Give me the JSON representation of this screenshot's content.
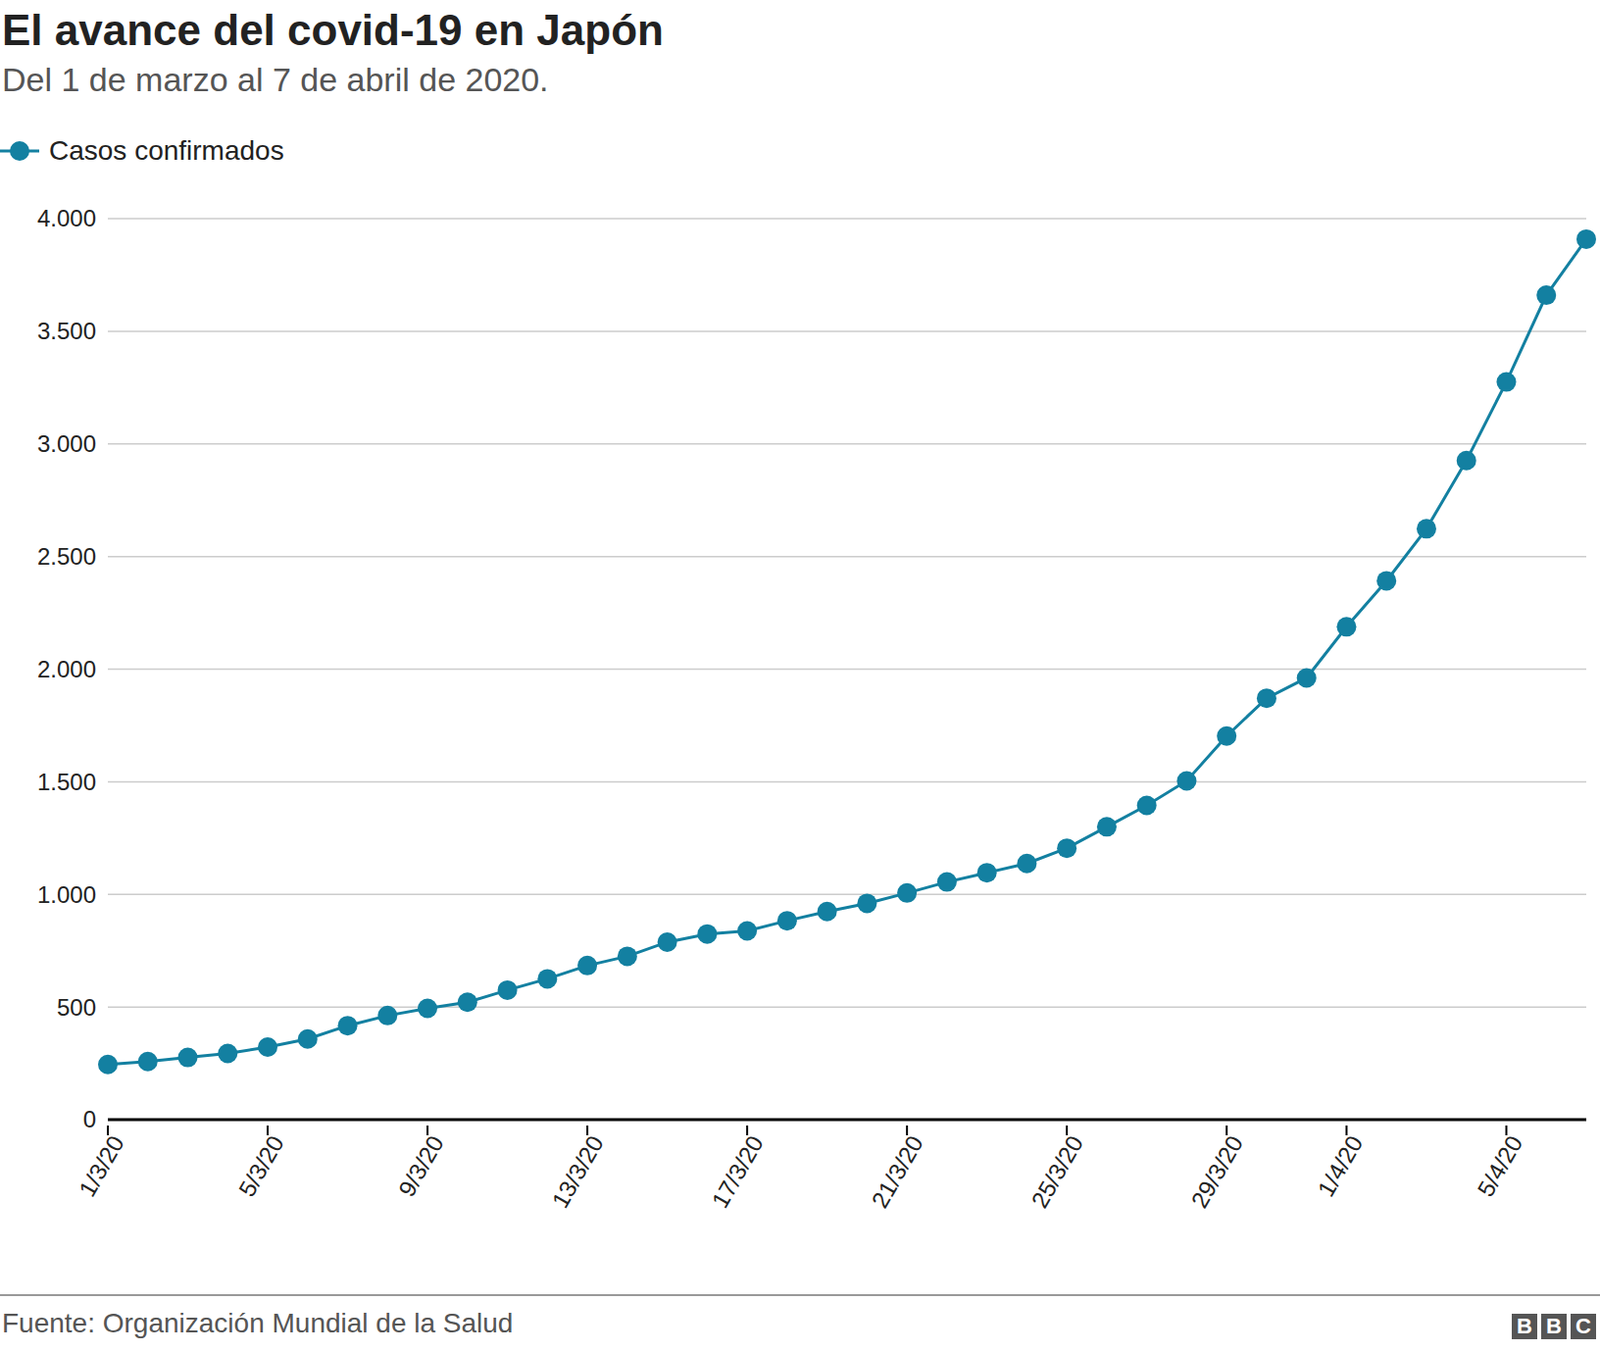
{
  "chart_data": {
    "type": "line",
    "title": "El avance del covid-19 en Japón",
    "subtitle": "Del 1 de marzo al 7 de abril de 2020.",
    "source": "Fuente: Organización Mundial de la Salud",
    "logo": "BBC",
    "categories": [
      "1/3/20",
      null,
      null,
      null,
      "5/3/20",
      null,
      null,
      null,
      "9/3/20",
      null,
      null,
      null,
      "13/3/20",
      null,
      null,
      null,
      "17/3/20",
      null,
      null,
      null,
      "21/3/20",
      null,
      null,
      null,
      "25/3/20",
      null,
      null,
      null,
      "29/3/20",
      null,
      null,
      "1/4/20",
      null,
      null,
      null,
      "5/4/20",
      null,
      null
    ],
    "series": [
      {
        "name": "Casos confirmados",
        "color": "#1380a1",
        "marker": "circle",
        "values": [
          245,
          258,
          276,
          294,
          322,
          358,
          417,
          462,
          494,
          521,
          575,
          625,
          684,
          725,
          788,
          824,
          838,
          883,
          924,
          960,
          1006,
          1055,
          1096,
          1137,
          1205,
          1300,
          1395,
          1504,
          1703,
          1871,
          1961,
          2188,
          2392,
          2623,
          2926,
          3275,
          3660,
          3909
        ]
      }
    ],
    "ylim": [
      0,
      4000
    ],
    "yticks": [
      0,
      500,
      {
        "value": 1000,
        "label": "1.000"
      },
      {
        "value": 1500,
        "label": "1.500"
      },
      {
        "value": 2000,
        "label": "2.000"
      },
      {
        "value": 2500,
        "label": "2.500"
      },
      {
        "value": 3000,
        "label": "3.000"
      },
      {
        "value": 3500,
        "label": "3.500"
      },
      {
        "value": 4000,
        "label": "4.000"
      }
    ],
    "grid": true,
    "legend": "top-left"
  }
}
